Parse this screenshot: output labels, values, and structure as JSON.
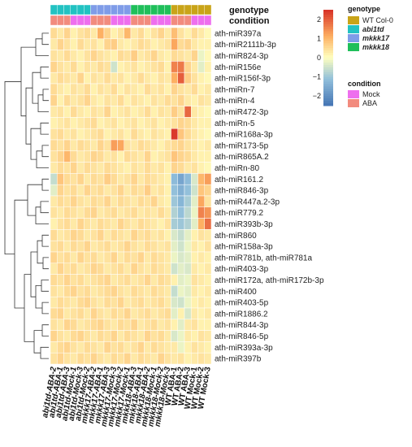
{
  "colors": {
    "WT Col-0": "#c9a418",
    "abi1td": "#22c2c2",
    "mkkk17": "#7f9ce8",
    "mkkk18": "#1fbf5a",
    "Mock": "#ee6fee",
    "ABA": "#f28b7e",
    "scale_low": "#4575b4",
    "scale_mid": "#ffffbf",
    "scale_high": "#d73027"
  },
  "tracks": {
    "genotype_label": "genotype",
    "condition_label": "condition"
  },
  "legend": {
    "genotype_title": "genotype",
    "genotype_items": [
      "WT Col-0",
      "abi1td",
      "mkkk17",
      "mkkk18"
    ],
    "condition_title": "condition",
    "condition_items": [
      "Mock",
      "ABA"
    ],
    "scale_ticks": [
      "2",
      "1",
      "0",
      "−1",
      "−2"
    ]
  },
  "chart_data": {
    "type": "heatmap",
    "scale_range": [
      -2.5,
      2.5
    ],
    "columns": [
      {
        "label": "abi1td-ABA-2",
        "genotype": "abi1td",
        "condition": "ABA"
      },
      {
        "label": "abi1td-ABA-1",
        "genotype": "abi1td",
        "condition": "ABA"
      },
      {
        "label": "abi1td-ABA-3",
        "genotype": "abi1td",
        "condition": "ABA"
      },
      {
        "label": "abi1td-Mock-1",
        "genotype": "abi1td",
        "condition": "Mock"
      },
      {
        "label": "abi1td-Mock-3",
        "genotype": "abi1td",
        "condition": "Mock"
      },
      {
        "label": "abi1td-Mock-2",
        "genotype": "abi1td",
        "condition": "Mock"
      },
      {
        "label": "mkkk17-ABA-2",
        "genotype": "mkkk17",
        "condition": "ABA"
      },
      {
        "label": "mkkk17-ABA-1",
        "genotype": "mkkk17",
        "condition": "ABA"
      },
      {
        "label": "mkkk17-ABA-3",
        "genotype": "mkkk17",
        "condition": "ABA"
      },
      {
        "label": "mkkk17-Mock-3",
        "genotype": "mkkk17",
        "condition": "Mock"
      },
      {
        "label": "mkkk17-Mock-2",
        "genotype": "mkkk17",
        "condition": "Mock"
      },
      {
        "label": "mkkk17-Mock-1",
        "genotype": "mkkk17",
        "condition": "Mock"
      },
      {
        "label": "mkkk18-ABA-3",
        "genotype": "mkkk18",
        "condition": "ABA"
      },
      {
        "label": "mkkk18-ABA-1",
        "genotype": "mkkk18",
        "condition": "ABA"
      },
      {
        "label": "mkkk18-ABA-2",
        "genotype": "mkkk18",
        "condition": "ABA"
      },
      {
        "label": "mkkk18-Mock-1",
        "genotype": "mkkk18",
        "condition": "Mock"
      },
      {
        "label": "mkkk18-Mock-2",
        "genotype": "mkkk18",
        "condition": "Mock"
      },
      {
        "label": "mkkk18-Mock-3",
        "genotype": "mkkk18",
        "condition": "Mock"
      },
      {
        "label": "WT ABA-1",
        "genotype": "WT Col-0",
        "condition": "ABA"
      },
      {
        "label": "WT ABA-2",
        "genotype": "WT Col-0",
        "condition": "ABA"
      },
      {
        "label": "WT ABA-3",
        "genotype": "WT Col-0",
        "condition": "ABA"
      },
      {
        "label": "WT Mock-1",
        "genotype": "WT Col-0",
        "condition": "Mock"
      },
      {
        "label": "WT Mock-2",
        "genotype": "WT Col-0",
        "condition": "Mock"
      },
      {
        "label": "WT Mock-3",
        "genotype": "WT Col-0",
        "condition": "Mock"
      }
    ],
    "rows": [
      "ath-miR397a",
      "ath-miR2111b-3p",
      "ath-miR824-3p",
      "ath-miR156e",
      "ath-miR156f-3p",
      "ath-miRn-7",
      "ath-miRn-4",
      "ath-miR472-3p",
      "ath-miRn-5",
      "ath-miR168a-3p",
      "ath-miR173-5p",
      "ath-miR865A.2",
      "ath-miRn-80",
      "ath-miR161.2",
      "ath-miR846-3p",
      "ath-miR447a.2-3p",
      "ath-miR779.2",
      "ath-miR393b-3p",
      "ath-miR860",
      "ath-miR158a-3p",
      "ath-miR781b, ath-miR781a",
      "ath-miR403-3p",
      "ath-miR172a, ath-miR172b-3p",
      "ath-miR400",
      "ath-miR403-5p",
      "ath-miR1886.2",
      "ath-miR844-3p",
      "ath-miR846-5p",
      "ath-miR393a-3p",
      "ath-miR397b"
    ],
    "values": [
      [
        0.5,
        0.3,
        0.6,
        0.2,
        0.4,
        0.5,
        0.3,
        1.1,
        0.6,
        0.2,
        0.4,
        1.0,
        0.3,
        0.5,
        0.2,
        0.4,
        0.6,
        0.3,
        0.9,
        0.4,
        0.2,
        0.5,
        0.3,
        0.1
      ],
      [
        0.3,
        0.6,
        0.4,
        0.2,
        0.5,
        0.3,
        0.4,
        0.2,
        0.6,
        0.7,
        0.3,
        0.2,
        0.3,
        0.5,
        0.4,
        0.2,
        0.3,
        0.4,
        1.2,
        0.5,
        0.6,
        0.3,
        0.2,
        0.2
      ],
      [
        0.4,
        0.3,
        0.5,
        0.3,
        0.2,
        0.4,
        0.6,
        0.4,
        0.3,
        0.2,
        0.5,
        0.4,
        0.7,
        0.3,
        0.4,
        0.6,
        0.3,
        0.2,
        0.5,
        0.4,
        0.3,
        0.6,
        -0.2,
        0.1
      ],
      [
        0.6,
        0.4,
        0.3,
        0.5,
        0.2,
        0.4,
        0.3,
        0.5,
        0.4,
        -0.5,
        0.2,
        0.3,
        0.4,
        0.2,
        0.3,
        0.4,
        0.5,
        0.2,
        1.6,
        1.7,
        0.6,
        0.3,
        -0.3,
        0.2
      ],
      [
        0.3,
        0.5,
        0.4,
        0.3,
        0.6,
        0.2,
        0.4,
        0.3,
        0.5,
        0.3,
        0.4,
        0.2,
        0.3,
        0.5,
        0.3,
        0.2,
        0.4,
        0.3,
        1.1,
        2.0,
        0.7,
        0.4,
        0.2,
        0.1
      ],
      [
        0.5,
        0.3,
        0.2,
        0.4,
        0.3,
        0.5,
        0.2,
        0.4,
        0.3,
        0.5,
        0.2,
        0.4,
        0.3,
        0.2,
        0.5,
        0.3,
        0.4,
        0.2,
        0.6,
        0.4,
        0.3,
        0.5,
        0.2,
        0.3
      ],
      [
        0.6,
        0.2,
        0.5,
        0.3,
        0.4,
        0.6,
        0.3,
        0.2,
        0.4,
        0.3,
        0.5,
        0.2,
        0.4,
        0.3,
        0.2,
        0.4,
        0.3,
        0.5,
        0.4,
        0.6,
        0.3,
        0.2,
        0.4,
        0.3
      ],
      [
        0.3,
        0.4,
        0.2,
        0.5,
        0.3,
        0.2,
        0.4,
        0.3,
        0.6,
        0.2,
        0.3,
        0.4,
        0.2,
        0.3,
        0.5,
        0.2,
        0.4,
        0.3,
        0.7,
        0.4,
        1.9,
        0.3,
        0.2,
        0.1
      ],
      [
        0.2,
        0.3,
        0.4,
        0.2,
        0.3,
        0.4,
        0.5,
        0.2,
        0.3,
        0.4,
        0.2,
        0.3,
        0.4,
        0.2,
        0.3,
        0.4,
        0.2,
        0.3,
        0.4,
        0.6,
        0.5,
        0.3,
        0.2,
        0.2
      ],
      [
        0.4,
        0.5,
        0.3,
        0.4,
        0.2,
        0.3,
        0.4,
        0.5,
        0.2,
        0.3,
        0.4,
        0.2,
        0.5,
        0.3,
        0.2,
        0.4,
        0.3,
        0.2,
        2.4,
        0.8,
        0.5,
        0.3,
        0.2,
        0.1
      ],
      [
        0.5,
        0.4,
        0.6,
        0.3,
        0.5,
        0.4,
        0.3,
        0.6,
        0.4,
        1.3,
        1.2,
        0.4,
        0.3,
        0.5,
        0.4,
        0.3,
        0.2,
        0.4,
        0.5,
        0.6,
        0.4,
        0.3,
        0.2,
        0.3
      ],
      [
        0.4,
        0.6,
        1.0,
        0.5,
        0.3,
        0.4,
        0.6,
        0.5,
        0.3,
        0.4,
        0.2,
        0.5,
        0.4,
        0.3,
        0.6,
        0.2,
        0.3,
        0.4,
        0.8,
        0.6,
        0.5,
        0.3,
        0.2,
        0.2
      ],
      [
        0.3,
        0.5,
        0.4,
        0.6,
        0.3,
        0.5,
        0.4,
        0.3,
        0.5,
        0.4,
        0.3,
        0.2,
        0.4,
        0.3,
        0.5,
        0.3,
        0.4,
        0.2,
        0.6,
        0.5,
        0.3,
        0.4,
        0.2,
        0.1
      ],
      [
        -0.6,
        0.8,
        0.5,
        0.4,
        0.6,
        0.3,
        0.5,
        0.4,
        0.7,
        0.5,
        0.3,
        0.4,
        0.6,
        0.3,
        0.5,
        0.4,
        0.3,
        0.2,
        -1.2,
        -1.6,
        -1.2,
        -0.4,
        1.0,
        1.3
      ],
      [
        -0.3,
        0.6,
        0.4,
        0.5,
        0.3,
        0.6,
        0.4,
        0.5,
        0.3,
        0.4,
        0.6,
        0.3,
        0.5,
        0.4,
        0.7,
        0.3,
        0.4,
        0.2,
        -1.1,
        -1.4,
        -1.1,
        -0.5,
        0.8,
        0.6
      ],
      [
        0.3,
        0.5,
        0.4,
        0.6,
        0.4,
        0.3,
        0.5,
        0.4,
        0.6,
        0.3,
        0.5,
        0.4,
        0.3,
        0.5,
        0.4,
        0.6,
        0.3,
        0.2,
        -1.0,
        -1.3,
        -0.9,
        -0.3,
        1.2,
        0.4
      ],
      [
        0.4,
        0.3,
        0.5,
        0.4,
        0.3,
        0.5,
        0.6,
        0.3,
        0.4,
        0.5,
        0.3,
        0.4,
        0.5,
        0.3,
        0.4,
        0.3,
        0.5,
        0.3,
        -0.8,
        -1.1,
        -0.7,
        -0.2,
        1.6,
        1.4
      ],
      [
        0.2,
        0.4,
        0.5,
        0.3,
        0.6,
        0.4,
        0.3,
        0.5,
        0.4,
        0.3,
        0.6,
        0.4,
        0.3,
        0.5,
        0.4,
        0.3,
        0.2,
        0.4,
        -0.9,
        -1.0,
        -0.8,
        -0.3,
        1.1,
        1.8
      ],
      [
        0.5,
        0.3,
        0.4,
        0.6,
        0.5,
        0.3,
        0.4,
        0.6,
        0.3,
        0.5,
        0.4,
        0.3,
        0.6,
        0.4,
        0.5,
        0.3,
        0.4,
        0.2,
        -0.4,
        -0.6,
        -0.3,
        0.2,
        0.4,
        0.3
      ],
      [
        0.4,
        0.5,
        0.3,
        0.5,
        0.4,
        0.6,
        0.3,
        0.4,
        0.5,
        0.3,
        0.4,
        0.6,
        0.4,
        0.3,
        0.5,
        0.4,
        0.3,
        0.4,
        -0.3,
        -0.5,
        -0.2,
        0.3,
        0.2,
        0.4
      ],
      [
        0.6,
        0.4,
        0.5,
        0.3,
        0.6,
        0.4,
        0.5,
        0.3,
        0.4,
        0.6,
        0.3,
        0.5,
        0.4,
        0.6,
        0.3,
        0.5,
        0.4,
        0.3,
        -0.2,
        -0.4,
        -0.3,
        0.2,
        0.3,
        0.2
      ],
      [
        0.3,
        0.6,
        0.4,
        0.5,
        0.3,
        0.4,
        0.6,
        0.5,
        0.3,
        0.4,
        0.5,
        0.3,
        0.6,
        0.4,
        0.3,
        0.5,
        0.4,
        0.3,
        -0.5,
        -0.3,
        -0.4,
        0.3,
        0.2,
        0.3
      ],
      [
        0.5,
        0.4,
        0.6,
        0.4,
        0.5,
        0.3,
        0.4,
        0.5,
        0.6,
        0.3,
        0.4,
        0.5,
        0.3,
        0.4,
        0.6,
        0.3,
        0.5,
        0.4,
        0.2,
        -0.3,
        -0.2,
        0.4,
        0.3,
        0.2
      ],
      [
        0.4,
        0.3,
        0.5,
        0.6,
        0.4,
        0.5,
        0.3,
        0.4,
        0.5,
        0.6,
        0.4,
        0.3,
        0.5,
        0.4,
        0.3,
        0.5,
        0.4,
        0.3,
        -0.6,
        -0.2,
        -0.3,
        0.3,
        0.2,
        0.3
      ],
      [
        0.3,
        0.5,
        0.4,
        0.3,
        0.5,
        0.6,
        0.4,
        0.3,
        0.5,
        0.4,
        0.6,
        0.3,
        0.4,
        0.5,
        0.3,
        0.4,
        0.5,
        0.3,
        -0.4,
        -0.5,
        -0.2,
        0.2,
        0.3,
        0.2
      ],
      [
        0.5,
        0.6,
        0.3,
        0.4,
        0.5,
        0.3,
        0.6,
        0.4,
        0.3,
        0.5,
        0.4,
        0.6,
        0.3,
        0.4,
        0.5,
        0.3,
        0.4,
        0.5,
        -0.3,
        0.2,
        -0.4,
        0.3,
        0.2,
        0.3
      ],
      [
        0.4,
        0.3,
        0.6,
        0.5,
        0.3,
        0.4,
        0.5,
        0.6,
        0.4,
        0.3,
        0.5,
        0.4,
        0.6,
        0.3,
        0.4,
        0.5,
        0.3,
        0.4,
        0.2,
        -0.3,
        0.3,
        0.4,
        0.2,
        0.2
      ],
      [
        0.6,
        0.4,
        0.3,
        0.5,
        0.6,
        0.4,
        0.3,
        0.5,
        0.4,
        0.6,
        0.3,
        0.5,
        0.4,
        0.3,
        0.6,
        0.4,
        0.5,
        0.3,
        -0.4,
        -0.2,
        0.3,
        0.2,
        0.4,
        0.3
      ],
      [
        0.3,
        0.5,
        0.6,
        0.4,
        0.3,
        0.5,
        0.4,
        0.3,
        0.6,
        0.4,
        0.5,
        0.3,
        0.4,
        0.6,
        0.3,
        0.5,
        0.4,
        0.3,
        0.3,
        -0.2,
        0.2,
        0.4,
        0.3,
        0.2
      ],
      [
        0.4,
        0.6,
        0.4,
        0.3,
        0.5,
        0.4,
        0.6,
        0.4,
        0.3,
        0.5,
        0.4,
        0.6,
        0.3,
        0.5,
        0.4,
        0.3,
        0.6,
        0.4,
        0.3,
        0.4,
        0.2,
        0.3,
        0.4,
        0.3
      ]
    ],
    "xlabel": "",
    "ylabel": ""
  }
}
